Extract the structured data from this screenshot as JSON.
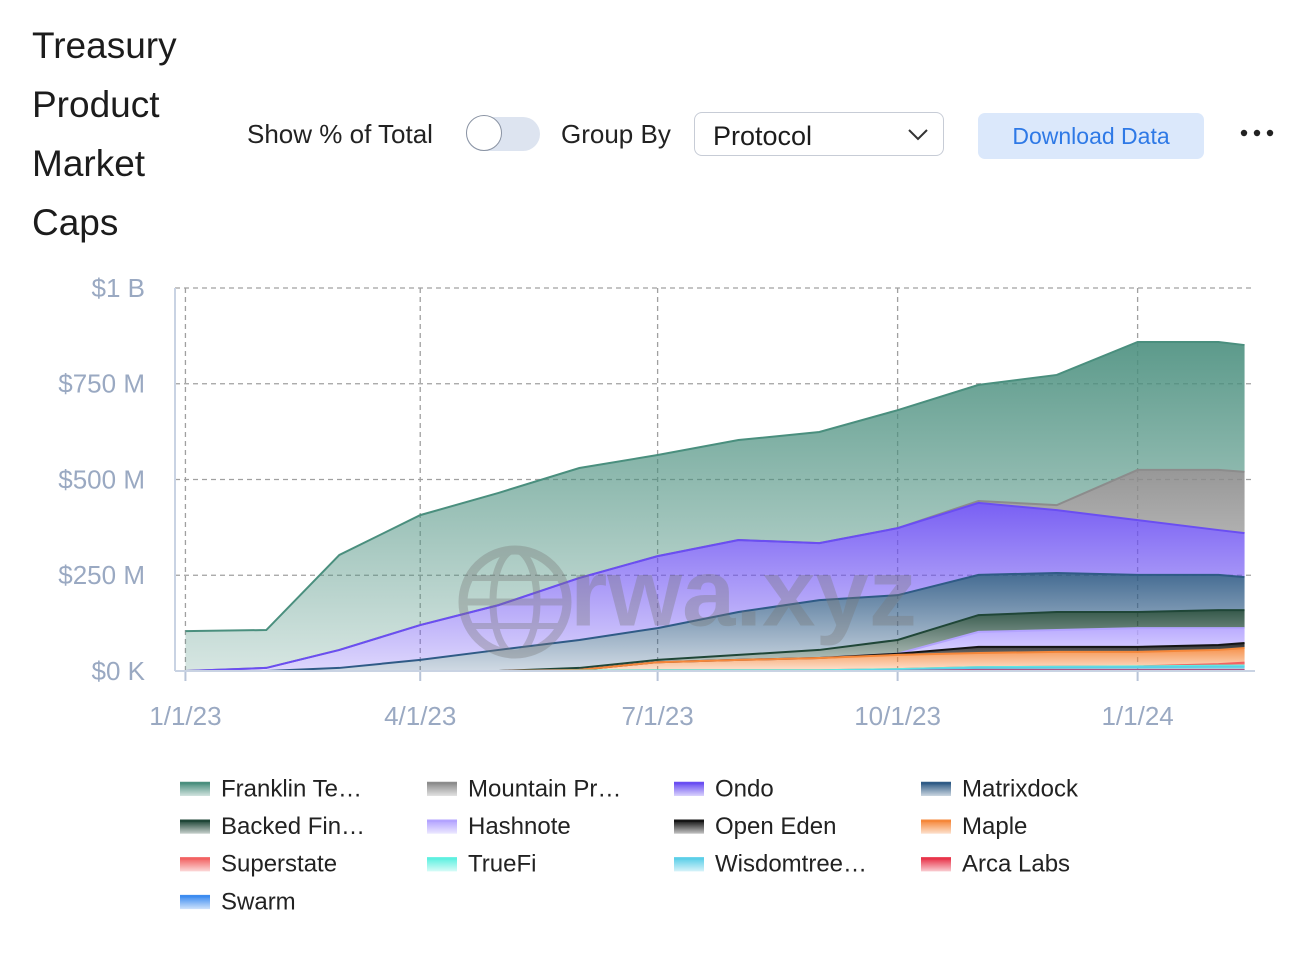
{
  "controls": {
    "show_percent_label": "Show % of Total",
    "group_by_label": "Group By",
    "group_by_value": "Protocol",
    "download_button": "Download Data"
  },
  "chart_data": {
    "type": "stacked_area",
    "title": "Treasury Product Market Caps",
    "watermark": "rwa.xyz",
    "x": [
      "2023-01-01",
      "2023-02-01",
      "2023-03-01",
      "2023-04-01",
      "2023-05-01",
      "2023-06-01",
      "2023-07-01",
      "2023-08-01",
      "2023-09-01",
      "2023-10-01",
      "2023-11-01",
      "2023-12-01",
      "2024-01-01",
      "2024-02-01",
      "2024-02-11"
    ],
    "xlim": [
      "2022-12-28",
      "2024-02-15"
    ],
    "xticks": [
      {
        "value": "2023-01-01",
        "label": "1/1/23"
      },
      {
        "value": "2023-04-01",
        "label": "4/1/23"
      },
      {
        "value": "2023-07-01",
        "label": "7/1/23"
      },
      {
        "value": "2023-10-01",
        "label": "10/1/23"
      },
      {
        "value": "2024-01-01",
        "label": "1/1/24"
      }
    ],
    "ylim": [
      0,
      1000000000
    ],
    "yticks": [
      {
        "value": 0,
        "label": "$0 K"
      },
      {
        "value": 250000000,
        "label": "$250 M"
      },
      {
        "value": 500000000,
        "label": "$500 M"
      },
      {
        "value": 750000000,
        "label": "$750 M"
      },
      {
        "value": 1000000000,
        "label": "$1 B"
      }
    ],
    "grid": true,
    "series": [
      {
        "name": "Franklin Te…",
        "color": "#4a8f7e",
        "values": [
          104000000,
          99000000,
          248000000,
          287000000,
          293000000,
          287000000,
          264000000,
          261000000,
          290000000,
          308000000,
          303000000,
          340000000,
          334000000,
          334000000,
          331000000
        ]
      },
      {
        "name": "Mountain Pr…",
        "color": "#8c8c8c",
        "values": [
          0,
          0,
          0,
          0,
          0,
          0,
          0,
          0,
          0,
          0,
          5000000,
          13000000,
          131000000,
          157000000,
          160000000
        ]
      },
      {
        "name": "Ondo",
        "color": "#6a4ef2",
        "values": [
          0,
          8000000,
          47000000,
          91000000,
          117000000,
          162000000,
          188000000,
          188000000,
          149000000,
          175000000,
          188000000,
          164000000,
          143000000,
          117000000,
          115000000
        ]
      },
      {
        "name": "Matrixdock",
        "color": "#2f5b86",
        "values": [
          0,
          0,
          8000000,
          29000000,
          55000000,
          73000000,
          83000000,
          112000000,
          130000000,
          117000000,
          105000000,
          102000000,
          97000000,
          92000000,
          86000000
        ]
      },
      {
        "name": "Backed Fin…",
        "color": "#1f4637",
        "values": [
          0,
          0,
          0,
          0,
          0,
          5000000,
          6000000,
          13000000,
          21000000,
          36000000,
          44000000,
          47000000,
          42000000,
          47000000,
          47000000
        ]
      },
      {
        "name": "Hashnote",
        "color": "#b3a3ff",
        "values": [
          0,
          0,
          0,
          0,
          0,
          0,
          0,
          0,
          0,
          0,
          39000000,
          44000000,
          49000000,
          44000000,
          39000000
        ]
      },
      {
        "name": "Open Eden",
        "color": "#151515",
        "values": [
          0,
          0,
          0,
          0,
          0,
          0,
          0,
          0,
          0,
          3000000,
          16000000,
          13000000,
          13000000,
          13000000,
          13000000
        ]
      },
      {
        "name": "Maple",
        "color": "#f5873a",
        "values": [
          0,
          0,
          0,
          0,
          0,
          2000000,
          21000000,
          27000000,
          32000000,
          37000000,
          37000000,
          39000000,
          38000000,
          37000000,
          38000000
        ]
      },
      {
        "name": "Superstate",
        "color": "#f26262",
        "values": [
          0,
          0,
          0,
          0,
          0,
          0,
          0,
          0,
          0,
          0,
          0,
          0,
          0,
          4000000,
          8000000
        ]
      },
      {
        "name": "TrueFi",
        "color": "#5ef0e0",
        "values": [
          0,
          0,
          0,
          0,
          0,
          1000000,
          2000000,
          2000000,
          2000000,
          2000000,
          2000000,
          2000000,
          2000000,
          3000000,
          3000000
        ]
      },
      {
        "name": "Wisdomtree…",
        "color": "#5ccfe8",
        "values": [
          0,
          0,
          0,
          0,
          0,
          0,
          0,
          0,
          0,
          3000000,
          5000000,
          6000000,
          7000000,
          8000000,
          8000000
        ]
      },
      {
        "name": "Arca Labs",
        "color": "#e8344a",
        "values": [
          0,
          0,
          0,
          0,
          0,
          0,
          0,
          0,
          0,
          0,
          2000000,
          2000000,
          2000000,
          2000000,
          2000000
        ]
      },
      {
        "name": "Swarm",
        "color": "#3d8cf0",
        "values": [
          0,
          0,
          0,
          0,
          0,
          0,
          0,
          0,
          0,
          0,
          1000000,
          1000000,
          1000000,
          1000000,
          1000000
        ]
      }
    ]
  }
}
